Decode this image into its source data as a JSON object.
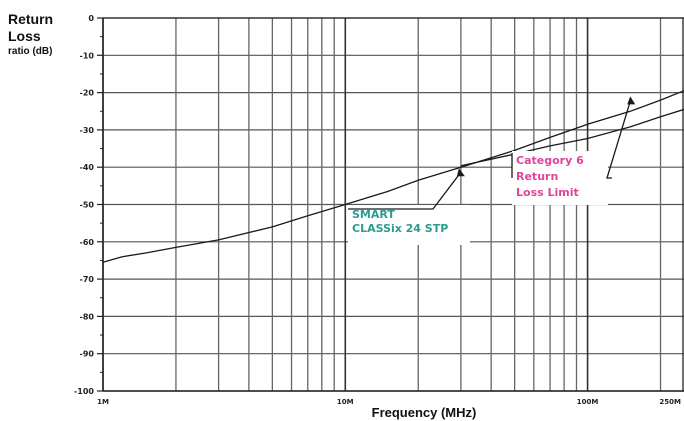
{
  "chart_data": {
    "type": "line",
    "ylabel_line1": "Return",
    "ylabel_line2": "Loss",
    "ylabel_line3": "ratio (dB)",
    "xlabel": "Frequency (MHz)",
    "x_scale": "log",
    "xlim": [
      1,
      250
    ],
    "ylim": [
      -100,
      0
    ],
    "grid": true,
    "x_ticks": [
      {
        "value": 1,
        "label": "1M"
      },
      {
        "value": 10,
        "label": "10M"
      },
      {
        "value": 100,
        "label": "100M"
      },
      {
        "value": 250,
        "label": "250M"
      }
    ],
    "y_ticks": [
      {
        "value": 0,
        "label": "0"
      },
      {
        "value": -10,
        "label": "-10"
      },
      {
        "value": -20,
        "label": "-20"
      },
      {
        "value": -30,
        "label": "-30"
      },
      {
        "value": -40,
        "label": "-40"
      },
      {
        "value": -50,
        "label": "-50"
      },
      {
        "value": -60,
        "label": "-60"
      },
      {
        "value": -70,
        "label": "-70"
      },
      {
        "value": -80,
        "label": "-80"
      },
      {
        "value": -90,
        "label": "-90"
      },
      {
        "value": -100,
        "label": "-100"
      }
    ],
    "series": [
      {
        "name": "SMART CLASSix 24 STP",
        "color": "#2a9d8f",
        "x": [
          1,
          1.2,
          1.5,
          2,
          3,
          5,
          7,
          10,
          15,
          20,
          30,
          50,
          70,
          100,
          150,
          200,
          250
        ],
        "y": [
          -65.5,
          -64,
          -63,
          -61.5,
          -59.5,
          -56,
          -53,
          -50,
          -46.5,
          -43.5,
          -40,
          -35.5,
          -32,
          -28.5,
          -25,
          -22,
          -19.5
        ]
      },
      {
        "name": "Category 6 Return Loss Limit",
        "color": "#e0449a",
        "x": [
          30,
          50,
          70,
          100,
          150,
          200,
          250
        ],
        "y": [
          -39.6,
          -36.5,
          -34.3,
          -32.3,
          -29.2,
          -26.5,
          -24.5
        ]
      }
    ],
    "annotations": [
      {
        "lines": [
          "SMART",
          "CLASSix 24 STP"
        ],
        "color": "#2a9d8f",
        "points_to": {
          "x": 30,
          "y": -40
        }
      },
      {
        "lines": [
          "Category 6",
          "Return",
          "Loss Limit"
        ],
        "color": "#e0449a",
        "points_to": {
          "x": 150,
          "y": -21
        }
      }
    ]
  }
}
